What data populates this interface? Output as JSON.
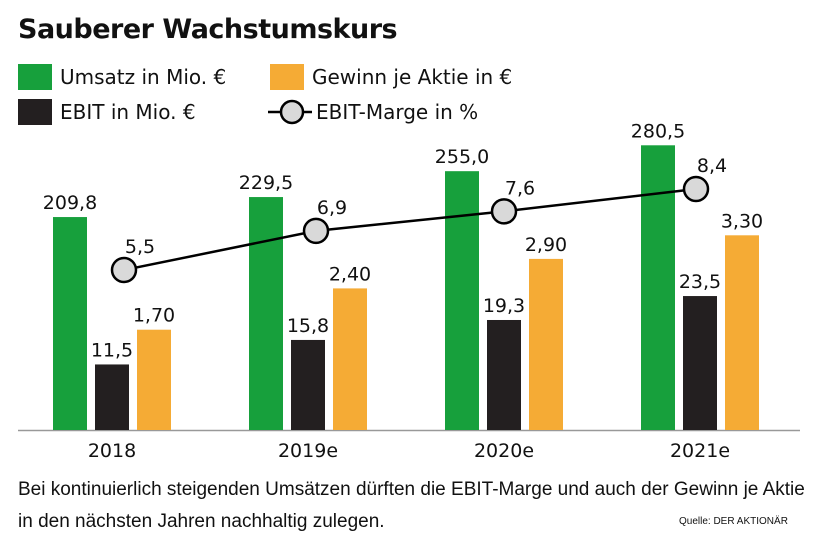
{
  "title": "Sauberer Wachstumskurs",
  "legend": [
    {
      "label": "Umsatz in Mio. €",
      "color": "#17a03c",
      "kind": "bar"
    },
    {
      "label": "Gewinn je Aktie in €",
      "color": "#f5ab35",
      "kind": "bar"
    },
    {
      "label": "EBIT in Mio. €",
      "color": "#231f20",
      "kind": "bar"
    },
    {
      "label": "EBIT-Marge in %",
      "color": "#d9d9d9",
      "kind": "line-marker"
    }
  ],
  "chart_data": {
    "type": "bar",
    "title": "Sauberer Wachstumskurs",
    "xlabel": "",
    "ylabel": "",
    "grid": false,
    "legend_position": "top-left",
    "categories": [
      "2018",
      "2019e",
      "2020e",
      "2021e"
    ],
    "series": [
      {
        "name": "Umsatz in Mio. €",
        "type": "bar",
        "color": "#17a03c",
        "values": [
          209.8,
          229.5,
          255.0,
          280.5
        ],
        "labels": [
          "209,8",
          "229,5",
          "255,0",
          "280,5"
        ]
      },
      {
        "name": "EBIT in Mio. €",
        "type": "bar",
        "color": "#231f20",
        "values": [
          11.5,
          15.8,
          19.3,
          23.5
        ],
        "labels": [
          "11,5",
          "15,8",
          "19,3",
          "23,5"
        ]
      },
      {
        "name": "Gewinn je Aktie in €",
        "type": "bar",
        "color": "#f5ab35",
        "values": [
          1.7,
          2.4,
          2.9,
          3.3
        ],
        "labels": [
          "1,70",
          "2,40",
          "2,90",
          "3,30"
        ]
      },
      {
        "name": "EBIT-Marge in %",
        "type": "line",
        "color": "#000000",
        "marker_fill": "#d9d9d9",
        "values": [
          5.5,
          6.9,
          7.6,
          8.4
        ],
        "labels": [
          "5,5",
          "6,9",
          "7,6",
          "8,4"
        ]
      }
    ]
  },
  "footer": {
    "text": "Bei kontinuierlich steigenden Umsätzen dürften die EBIT-Marge und auch der Gewinn je Aktie in den nächsten Jahren nachhaltig zulegen.",
    "source": "Quelle: DER AKTIONÄR"
  }
}
